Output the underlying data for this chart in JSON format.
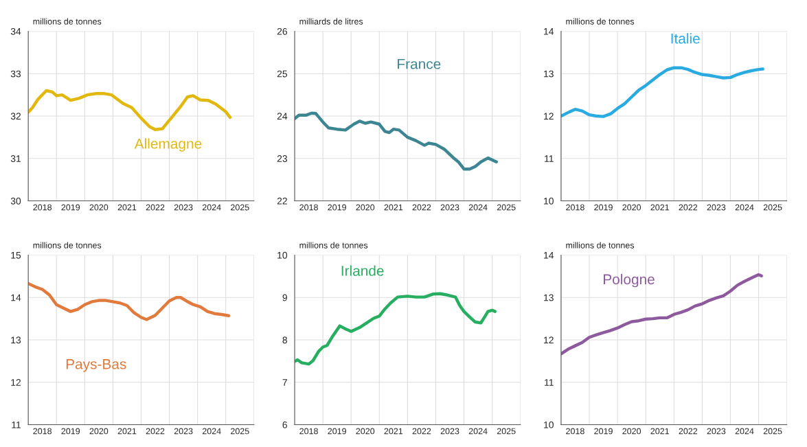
{
  "chart_data": [
    {
      "type": "line",
      "ylabel": "millions de tonnes",
      "xlim": [
        2018,
        2026
      ],
      "ylim": [
        30,
        34
      ],
      "yticks": [
        30,
        31,
        32,
        33,
        34
      ],
      "grid": true,
      "legend": false,
      "xticks": [
        {
          "value": 2018,
          "label": null
        },
        {
          "value": 2018.5,
          "label": "2018"
        },
        {
          "value": 2019,
          "label": null
        },
        {
          "value": 2019.5,
          "label": "2019"
        },
        {
          "value": 2020,
          "label": null
        },
        {
          "value": 2020.5,
          "label": "2020"
        },
        {
          "value": 2021,
          "label": null
        },
        {
          "value": 2021.5,
          "label": "2021"
        },
        {
          "value": 2022,
          "label": null
        },
        {
          "value": 2022.5,
          "label": "2022"
        },
        {
          "value": 2023,
          "label": null
        },
        {
          "value": 2023.5,
          "label": "2023"
        },
        {
          "value": 2024,
          "label": null
        },
        {
          "value": 2024.5,
          "label": "2024"
        },
        {
          "value": 2025,
          "label": null
        },
        {
          "value": 2025.5,
          "label": "2025"
        },
        {
          "value": 2026,
          "label": null
        }
      ],
      "series": [
        {
          "name": "Allemagne",
          "color": "#e2b80e",
          "x": [
            2018.0,
            2018.15,
            2018.35,
            2018.64,
            2018.85,
            2019.0,
            2019.2,
            2019.5,
            2019.8,
            2020.1,
            2020.4,
            2020.7,
            2020.95,
            2021.05,
            2021.35,
            2021.67,
            2022.0,
            2022.3,
            2022.5,
            2022.75,
            2023.06,
            2023.37,
            2023.64,
            2023.84,
            2024.1,
            2024.38,
            2024.65,
            2025.0,
            2025.15
          ],
          "values": [
            32.09,
            32.2,
            32.4,
            32.6,
            32.57,
            32.48,
            32.5,
            32.37,
            32.42,
            32.5,
            32.53,
            32.53,
            32.5,
            32.45,
            32.3,
            32.2,
            31.95,
            31.75,
            31.68,
            31.7,
            31.95,
            32.2,
            32.45,
            32.48,
            32.38,
            32.37,
            32.28,
            32.1,
            31.97
          ]
        }
      ]
    },
    {
      "type": "line",
      "ylabel": "milliards de litres",
      "xlim": [
        2018,
        2026
      ],
      "ylim": [
        22,
        26
      ],
      "yticks": [
        22,
        23,
        24,
        25,
        26
      ],
      "grid": true,
      "legend": false,
      "xticks": [
        {
          "value": 2018,
          "label": null
        },
        {
          "value": 2018.5,
          "label": "2018"
        },
        {
          "value": 2019,
          "label": null
        },
        {
          "value": 2019.5,
          "label": "2019"
        },
        {
          "value": 2020,
          "label": null
        },
        {
          "value": 2020.5,
          "label": "2020"
        },
        {
          "value": 2021,
          "label": null
        },
        {
          "value": 2021.5,
          "label": "2021"
        },
        {
          "value": 2022,
          "label": null
        },
        {
          "value": 2022.5,
          "label": "2022"
        },
        {
          "value": 2023,
          "label": null
        },
        {
          "value": 2023.5,
          "label": "2023"
        },
        {
          "value": 2024,
          "label": null
        },
        {
          "value": 2024.5,
          "label": "2024"
        },
        {
          "value": 2025,
          "label": null
        },
        {
          "value": 2025.5,
          "label": "2025"
        },
        {
          "value": 2026,
          "label": null
        }
      ],
      "series": [
        {
          "name": "France",
          "color": "#3d8592",
          "x": [
            2018.0,
            2018.15,
            2018.4,
            2018.6,
            2018.75,
            2019.0,
            2019.2,
            2019.5,
            2019.8,
            2020.1,
            2020.3,
            2020.5,
            2020.7,
            2021.0,
            2021.2,
            2021.35,
            2021.5,
            2021.7,
            2022.0,
            2022.3,
            2022.6,
            2022.75,
            2023.0,
            2023.3,
            2023.6,
            2023.8,
            2024.0,
            2024.2,
            2024.4,
            2024.6,
            2024.85,
            2025.15
          ],
          "values": [
            23.94,
            24.02,
            24.02,
            24.07,
            24.06,
            23.86,
            23.72,
            23.69,
            23.67,
            23.81,
            23.88,
            23.83,
            23.86,
            23.81,
            23.64,
            23.61,
            23.69,
            23.67,
            23.5,
            23.42,
            23.31,
            23.36,
            23.33,
            23.22,
            23.03,
            22.92,
            22.75,
            22.75,
            22.81,
            22.92,
            23.01,
            22.92
          ]
        }
      ]
    },
    {
      "type": "line",
      "ylabel": "millions de tonnes",
      "xlim": [
        2018,
        2026
      ],
      "ylim": [
        10,
        14
      ],
      "yticks": [
        10,
        11,
        12,
        13,
        14
      ],
      "grid": true,
      "legend": false,
      "xticks": [
        {
          "value": 2018,
          "label": null
        },
        {
          "value": 2018.5,
          "label": "2018"
        },
        {
          "value": 2019,
          "label": null
        },
        {
          "value": 2019.5,
          "label": "2019"
        },
        {
          "value": 2020,
          "label": null
        },
        {
          "value": 2020.5,
          "label": "2020"
        },
        {
          "value": 2021,
          "label": null
        },
        {
          "value": 2021.5,
          "label": "2021"
        },
        {
          "value": 2022,
          "label": null
        },
        {
          "value": 2022.5,
          "label": "2022"
        },
        {
          "value": 2023,
          "label": null
        },
        {
          "value": 2023.5,
          "label": "2023"
        },
        {
          "value": 2024,
          "label": null
        },
        {
          "value": 2024.5,
          "label": "2024"
        },
        {
          "value": 2025,
          "label": null
        },
        {
          "value": 2025.5,
          "label": "2025"
        },
        {
          "value": 2026,
          "label": null
        }
      ],
      "series": [
        {
          "name": "Italie",
          "color": "#29abe2",
          "x": [
            2018.0,
            2018.3,
            2018.5,
            2018.75,
            2019.0,
            2019.25,
            2019.5,
            2019.75,
            2020.0,
            2020.25,
            2020.5,
            2020.75,
            2021.0,
            2021.25,
            2021.5,
            2021.75,
            2022.0,
            2022.25,
            2022.5,
            2022.75,
            2023.0,
            2023.25,
            2023.5,
            2023.75,
            2024.0,
            2024.25,
            2024.5,
            2024.75,
            2025.0,
            2025.15
          ],
          "values": [
            12.0,
            12.1,
            12.16,
            12.12,
            12.03,
            12.0,
            11.99,
            12.05,
            12.18,
            12.29,
            12.45,
            12.61,
            12.72,
            12.85,
            12.98,
            13.09,
            13.14,
            13.14,
            13.1,
            13.03,
            12.98,
            12.96,
            12.93,
            12.9,
            12.91,
            12.98,
            13.03,
            13.07,
            13.1,
            13.11
          ]
        }
      ]
    },
    {
      "type": "line",
      "ylabel": "millions de tonnes",
      "xlim": [
        2018,
        2026
      ],
      "ylim": [
        11,
        15
      ],
      "yticks": [
        11,
        12,
        13,
        14,
        15
      ],
      "grid": true,
      "legend": false,
      "xticks": [
        {
          "value": 2018,
          "label": null
        },
        {
          "value": 2018.5,
          "label": "2018"
        },
        {
          "value": 2019,
          "label": null
        },
        {
          "value": 2019.5,
          "label": "2019"
        },
        {
          "value": 2020,
          "label": null
        },
        {
          "value": 2020.5,
          "label": "2020"
        },
        {
          "value": 2021,
          "label": null
        },
        {
          "value": 2021.5,
          "label": "2021"
        },
        {
          "value": 2022,
          "label": null
        },
        {
          "value": 2022.5,
          "label": "2022"
        },
        {
          "value": 2023,
          "label": null
        },
        {
          "value": 2023.5,
          "label": "2023"
        },
        {
          "value": 2024,
          "label": null
        },
        {
          "value": 2024.5,
          "label": "2024"
        },
        {
          "value": 2025,
          "label": null
        },
        {
          "value": 2025.5,
          "label": "2025"
        },
        {
          "value": 2026,
          "label": null
        }
      ],
      "series": [
        {
          "name": "Pays-Bas",
          "color": "#e07a3d",
          "x": [
            2018.0,
            2018.25,
            2018.5,
            2018.75,
            2019.0,
            2019.25,
            2019.5,
            2019.75,
            2020.0,
            2020.25,
            2020.5,
            2020.75,
            2021.0,
            2021.25,
            2021.5,
            2021.75,
            2022.0,
            2022.2,
            2022.5,
            2022.75,
            2023.0,
            2023.25,
            2023.4,
            2023.6,
            2023.85,
            2024.1,
            2024.35,
            2024.6,
            2024.85,
            2025.1
          ],
          "values": [
            14.33,
            14.25,
            14.19,
            14.06,
            13.83,
            13.75,
            13.67,
            13.72,
            13.83,
            13.9,
            13.93,
            13.93,
            13.9,
            13.87,
            13.81,
            13.64,
            13.53,
            13.48,
            13.58,
            13.75,
            13.92,
            14.0,
            14.0,
            13.92,
            13.83,
            13.78,
            13.67,
            13.62,
            13.6,
            13.57
          ]
        }
      ]
    },
    {
      "type": "line",
      "ylabel": "millions de tonnes",
      "xlim": [
        2018,
        2026
      ],
      "ylim": [
        6,
        10
      ],
      "yticks": [
        6,
        7,
        8,
        9,
        10
      ],
      "grid": true,
      "legend": false,
      "xticks": [
        {
          "value": 2018,
          "label": null
        },
        {
          "value": 2018.5,
          "label": "2018"
        },
        {
          "value": 2019,
          "label": null
        },
        {
          "value": 2019.5,
          "label": "2019"
        },
        {
          "value": 2020,
          "label": null
        },
        {
          "value": 2020.5,
          "label": "2020"
        },
        {
          "value": 2021,
          "label": null
        },
        {
          "value": 2021.5,
          "label": "2021"
        },
        {
          "value": 2022,
          "label": null
        },
        {
          "value": 2022.5,
          "label": "2022"
        },
        {
          "value": 2023,
          "label": null
        },
        {
          "value": 2023.5,
          "label": "2023"
        },
        {
          "value": 2024,
          "label": null
        },
        {
          "value": 2024.5,
          "label": "2024"
        },
        {
          "value": 2025,
          "label": null
        },
        {
          "value": 2025.5,
          "label": "2025"
        },
        {
          "value": 2026,
          "label": null
        }
      ],
      "series": [
        {
          "name": "Irlande",
          "color": "#27ae60",
          "x": [
            2018.0,
            2018.1,
            2018.25,
            2018.5,
            2018.65,
            2018.85,
            2019.0,
            2019.15,
            2019.35,
            2019.6,
            2019.8,
            2020.0,
            2020.3,
            2020.55,
            2020.8,
            2021.0,
            2021.2,
            2021.4,
            2021.65,
            2022.0,
            2022.3,
            2022.6,
            2022.9,
            2023.15,
            2023.4,
            2023.7,
            2023.85,
            2024.0,
            2024.2,
            2024.4,
            2024.6,
            2024.75,
            2024.85,
            2025.0,
            2025.1
          ],
          "values": [
            7.49,
            7.53,
            7.46,
            7.43,
            7.51,
            7.73,
            7.83,
            7.87,
            8.09,
            8.33,
            8.26,
            8.2,
            8.29,
            8.4,
            8.51,
            8.56,
            8.73,
            8.87,
            9.01,
            9.03,
            9.01,
            9.01,
            9.08,
            9.09,
            9.06,
            9.01,
            8.81,
            8.67,
            8.54,
            8.42,
            8.4,
            8.56,
            8.67,
            8.7,
            8.67
          ]
        }
      ]
    },
    {
      "type": "line",
      "ylabel": "millions de tonnes",
      "xlim": [
        2018,
        2026
      ],
      "ylim": [
        10,
        14
      ],
      "yticks": [
        10,
        11,
        12,
        13,
        14
      ],
      "grid": true,
      "legend": false,
      "xticks": [
        {
          "value": 2018,
          "label": null
        },
        {
          "value": 2018.5,
          "label": "2018"
        },
        {
          "value": 2019,
          "label": null
        },
        {
          "value": 2019.5,
          "label": "2019"
        },
        {
          "value": 2020,
          "label": null
        },
        {
          "value": 2020.5,
          "label": "2020"
        },
        {
          "value": 2021,
          "label": null
        },
        {
          "value": 2021.5,
          "label": "2021"
        },
        {
          "value": 2022,
          "label": null
        },
        {
          "value": 2022.5,
          "label": "2022"
        },
        {
          "value": 2023,
          "label": null
        },
        {
          "value": 2023.5,
          "label": "2023"
        },
        {
          "value": 2024,
          "label": null
        },
        {
          "value": 2024.5,
          "label": "2024"
        },
        {
          "value": 2025,
          "label": null
        },
        {
          "value": 2025.5,
          "label": "2025"
        },
        {
          "value": 2026,
          "label": null
        }
      ],
      "series": [
        {
          "name": "Pologne",
          "color": "#8e5a9e",
          "x": [
            2018.0,
            2018.25,
            2018.5,
            2018.75,
            2019.0,
            2019.25,
            2019.5,
            2019.75,
            2020.0,
            2020.25,
            2020.5,
            2020.75,
            2021.0,
            2021.25,
            2021.5,
            2021.75,
            2022.0,
            2022.25,
            2022.5,
            2022.75,
            2023.0,
            2023.25,
            2023.5,
            2023.75,
            2024.0,
            2024.25,
            2024.5,
            2024.75,
            2025.0,
            2025.1
          ],
          "values": [
            11.67,
            11.78,
            11.86,
            11.94,
            12.06,
            12.12,
            12.17,
            12.22,
            12.28,
            12.36,
            12.43,
            12.45,
            12.49,
            12.5,
            12.52,
            12.52,
            12.6,
            12.65,
            12.71,
            12.8,
            12.85,
            12.93,
            12.99,
            13.04,
            13.15,
            13.29,
            13.38,
            13.46,
            13.54,
            13.51
          ]
        }
      ]
    }
  ]
}
